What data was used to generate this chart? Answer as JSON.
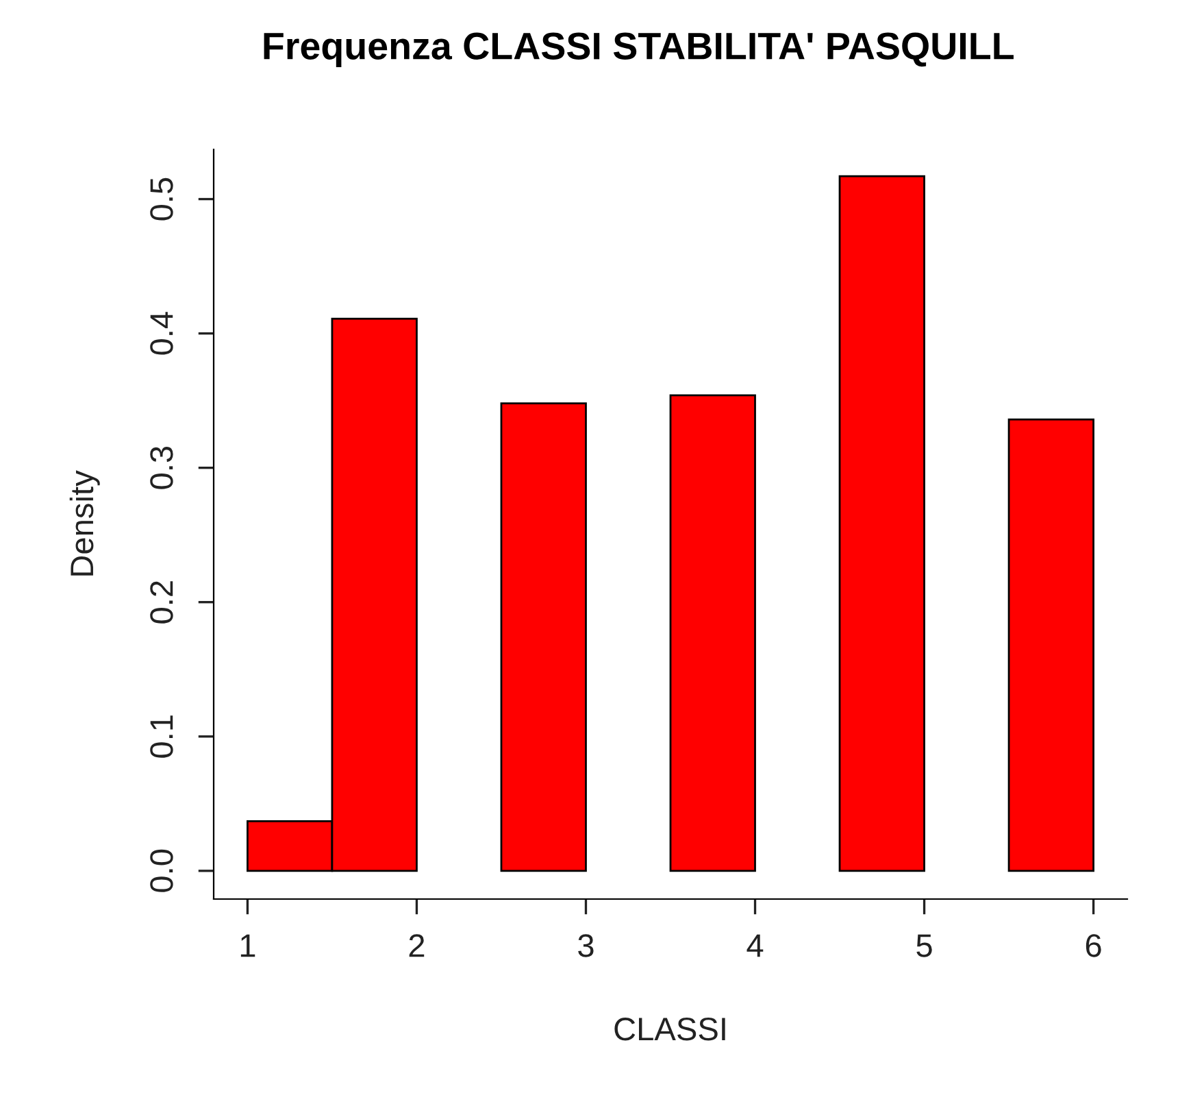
{
  "chart_data": {
    "type": "histogram",
    "title": "Frequenza CLASSI STABILITA' PASQUILL",
    "xlabel": "CLASSI",
    "ylabel": "Density",
    "bins": [
      1,
      1.5,
      2,
      2.5,
      3,
      3.5,
      4,
      4.5,
      5,
      5.5,
      6
    ],
    "values": [
      0.037,
      0.411,
      0,
      0.348,
      0,
      0.354,
      0,
      0.517,
      0,
      0.336
    ],
    "color": "#ff0000",
    "xlim": [
      0.8,
      6.2
    ],
    "ylim": [
      -0.021,
      0.537
    ],
    "xticks": [
      1,
      2,
      3,
      4,
      5,
      6
    ],
    "yticks": [
      {
        "value": 0,
        "label": "0.0"
      },
      0.1,
      0.2,
      0.3,
      0.4,
      0.5
    ],
    "grid": false
  }
}
